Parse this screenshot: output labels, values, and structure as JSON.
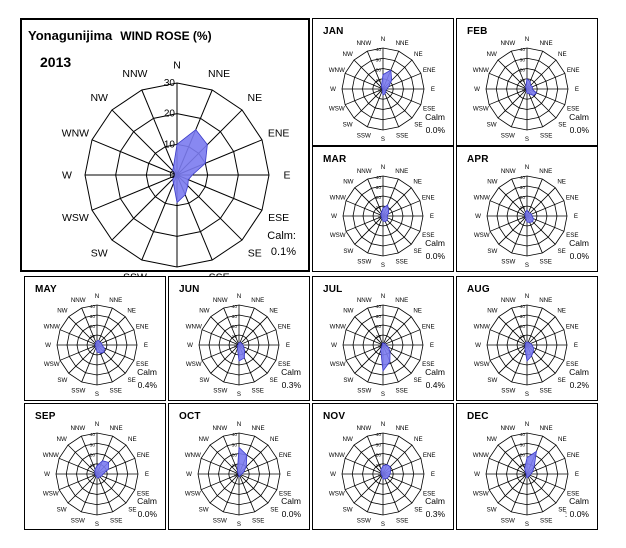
{
  "station": "Yonagunijima",
  "title": "WIND ROSE (%)",
  "year": "2013",
  "directions": [
    "N",
    "NNE",
    "NE",
    "ENE",
    "E",
    "ESE",
    "SE",
    "SSE",
    "S",
    "SSW",
    "SW",
    "WSW",
    "W",
    "WNW",
    "NW",
    "NNW"
  ],
  "chart_data": [
    {
      "type": "radar",
      "name": "annual",
      "title": "WIND ROSE (%)",
      "rmax": 30,
      "ring_ticks": [
        "0",
        "10",
        "20",
        "30"
      ],
      "calm_label": "Calm:",
      "calm_value": "0.1%",
      "series": [
        {
          "values": [
            10,
            16,
            14,
            10,
            5,
            4,
            5,
            7,
            9,
            3,
            2,
            1,
            1,
            1,
            2,
            3
          ],
          "color": "#7b7bf0"
        }
      ]
    },
    {
      "type": "radar",
      "name": "jan",
      "title": "JAN",
      "rmax": 40,
      "ring_ticks": [
        "0",
        "10",
        "20",
        "30",
        "40"
      ],
      "calm_label": "Calm",
      "calm_value": "0.0%",
      "series": [
        {
          "values": [
            14,
            20,
            12,
            6,
            4,
            3,
            4,
            5,
            6,
            2,
            1,
            1,
            1,
            1,
            2,
            4
          ],
          "color": "#7b7bf0"
        }
      ]
    },
    {
      "type": "radar",
      "name": "feb",
      "title": "FEB",
      "rmax": 40,
      "ring_ticks": [
        "0",
        "10",
        "20",
        "30",
        "40"
      ],
      "calm_label": "Calm",
      "calm_value": "0.0%",
      "series": [
        {
          "values": [
            10,
            8,
            5,
            6,
            5,
            10,
            9,
            5,
            4,
            2,
            1,
            1,
            1,
            1,
            2,
            3
          ],
          "color": "#7b7bf0"
        }
      ]
    },
    {
      "type": "radar",
      "name": "mar",
      "title": "MAR",
      "rmax": 40,
      "ring_ticks": [
        "0",
        "10",
        "20",
        "30",
        "40"
      ],
      "calm_label": "Calm",
      "calm_value": "0.0%",
      "series": [
        {
          "values": [
            8,
            12,
            8,
            6,
            4,
            5,
            6,
            6,
            5,
            3,
            2,
            2,
            2,
            2,
            3,
            4
          ],
          "color": "#7b7bf0"
        }
      ]
    },
    {
      "type": "radar",
      "name": "apr",
      "title": "APR",
      "rmax": 40,
      "ring_ticks": [
        "0",
        "10",
        "20",
        "30",
        "40"
      ],
      "calm_label": "Calm",
      "calm_value": "0.0%",
      "series": [
        {
          "values": [
            6,
            4,
            4,
            5,
            5,
            7,
            8,
            7,
            6,
            3,
            2,
            2,
            2,
            2,
            3,
            4
          ],
          "color": "#7b7bf0"
        }
      ]
    },
    {
      "type": "radar",
      "name": "may",
      "title": "MAY",
      "rmax": 40,
      "ring_ticks": [
        "0",
        "10",
        "20",
        "30",
        "40"
      ],
      "calm_label": "Calm",
      "calm_value": "0.4%",
      "series": [
        {
          "values": [
            4,
            5,
            4,
            5,
            5,
            8,
            10,
            9,
            7,
            3,
            2,
            2,
            2,
            2,
            2,
            3
          ],
          "color": "#7b7bf0"
        }
      ]
    },
    {
      "type": "radar",
      "name": "jun",
      "title": "JUN",
      "rmax": 40,
      "ring_ticks": [
        "0",
        "10",
        "20",
        "30",
        "40"
      ],
      "calm_label": "Calm",
      "calm_value": "0.3%",
      "series": [
        {
          "values": [
            2,
            3,
            3,
            3,
            4,
            5,
            8,
            14,
            16,
            4,
            2,
            2,
            1,
            1,
            1,
            2
          ],
          "color": "#7b7bf0"
        }
      ]
    },
    {
      "type": "radar",
      "name": "jul",
      "title": "JUL",
      "rmax": 40,
      "ring_ticks": [
        "0",
        "10",
        "20",
        "30",
        "40"
      ],
      "calm_label": "Calm",
      "calm_value": "0.4%",
      "series": [
        {
          "values": [
            2,
            2,
            2,
            3,
            3,
            6,
            10,
            18,
            26,
            6,
            2,
            1,
            1,
            1,
            1,
            2
          ],
          "color": "#7b7bf0"
        }
      ]
    },
    {
      "type": "radar",
      "name": "aug",
      "title": "AUG",
      "rmax": 40,
      "ring_ticks": [
        "0",
        "10",
        "20",
        "30",
        "40"
      ],
      "calm_label": "Calm",
      "calm_value": "0.2%",
      "series": [
        {
          "values": [
            3,
            3,
            3,
            4,
            5,
            7,
            9,
            12,
            16,
            5,
            3,
            2,
            2,
            2,
            2,
            3
          ],
          "color": "#7b7bf0"
        }
      ]
    },
    {
      "type": "radar",
      "name": "sep",
      "title": "SEP",
      "rmax": 40,
      "ring_ticks": [
        "0",
        "10",
        "20",
        "30",
        "40"
      ],
      "calm_label": "Calm",
      "calm_value": "0.0%",
      "series": [
        {
          "values": [
            8,
            14,
            16,
            12,
            6,
            5,
            4,
            4,
            4,
            2,
            2,
            2,
            2,
            2,
            3,
            5
          ],
          "color": "#7b7bf0"
        }
      ]
    },
    {
      "type": "radar",
      "name": "oct",
      "title": "OCT",
      "rmax": 40,
      "ring_ticks": [
        "0",
        "10",
        "20",
        "30",
        "40"
      ],
      "calm_label": "Calm",
      "calm_value": "0.0%",
      "series": [
        {
          "values": [
            26,
            20,
            10,
            5,
            3,
            2,
            2,
            2,
            3,
            1,
            1,
            1,
            1,
            1,
            2,
            4
          ],
          "color": "#7b7bf0"
        }
      ]
    },
    {
      "type": "radar",
      "name": "nov",
      "title": "NOV",
      "rmax": 40,
      "ring_ticks": [
        "0",
        "10",
        "20",
        "30",
        "40"
      ],
      "calm_label": "Calm",
      "calm_value": "0.3%",
      "series": [
        {
          "values": [
            8,
            10,
            10,
            8,
            7,
            6,
            6,
            5,
            5,
            2,
            2,
            2,
            2,
            2,
            3,
            5
          ],
          "color": "#7b7bf0"
        }
      ]
    },
    {
      "type": "radar",
      "name": "dec",
      "title": "DEC",
      "rmax": 40,
      "ring_ticks": [
        "0",
        "10",
        "20",
        "30",
        "40"
      ],
      "calm_label": "Calm",
      "calm_value": ": 0.0%",
      "series": [
        {
          "values": [
            16,
            24,
            10,
            6,
            4,
            3,
            3,
            3,
            4,
            2,
            1,
            1,
            1,
            1,
            2,
            6
          ],
          "color": "#7b7bf0"
        }
      ]
    }
  ]
}
